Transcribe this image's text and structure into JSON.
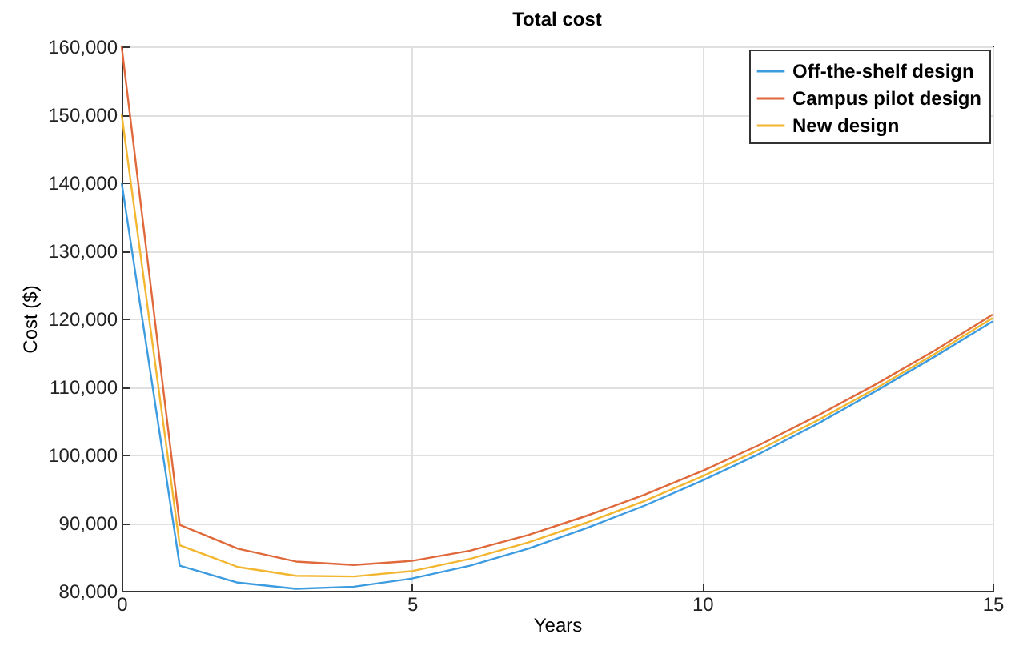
{
  "chart_data": {
    "type": "line",
    "title": "Total cost",
    "xlabel": "Years",
    "ylabel": "Cost ($)",
    "x": [
      0,
      1,
      2,
      3,
      4,
      5,
      6,
      7,
      8,
      9,
      10,
      11,
      12,
      13,
      14,
      15
    ],
    "series": [
      {
        "name": "Off-the-shelf design",
        "color": "#3d9be0",
        "values": [
          140000,
          83700,
          81200,
          80300,
          80600,
          81800,
          83700,
          86200,
          89200,
          92500,
          96200,
          100200,
          104600,
          109400,
          114400,
          119600
        ]
      },
      {
        "name": "Campus pilot design",
        "color": "#e0693c",
        "values": [
          160000,
          89700,
          86200,
          84300,
          83800,
          84400,
          85900,
          88200,
          91000,
          94100,
          97600,
          101500,
          105800,
          110400,
          115300,
          120600
        ]
      },
      {
        "name": "New design",
        "color": "#f2b630",
        "values": [
          150000,
          86700,
          83500,
          82200,
          82100,
          82900,
          84700,
          87100,
          90000,
          93200,
          96800,
          100800,
          105100,
          109800,
          114800,
          120100
        ]
      }
    ],
    "xlim": [
      0,
      15
    ],
    "xticks": [
      0,
      5,
      10,
      15
    ],
    "ylim": [
      80000,
      160000
    ],
    "yticks": [
      {
        "value": 80000,
        "label": "80,000"
      },
      {
        "value": 90000,
        "label": "90,000"
      },
      {
        "value": 100000,
        "label": "100,000"
      },
      {
        "value": 110000,
        "label": "110,000"
      },
      {
        "value": 120000,
        "label": "120,000"
      },
      {
        "value": 130000,
        "label": "130,000"
      },
      {
        "value": 140000,
        "label": "140,000"
      },
      {
        "value": 150000,
        "label": "150,000"
      },
      {
        "value": 160000,
        "label": "160,000"
      }
    ],
    "grid": true,
    "legend": "top right",
    "marker": "none",
    "line_style": "solid"
  }
}
